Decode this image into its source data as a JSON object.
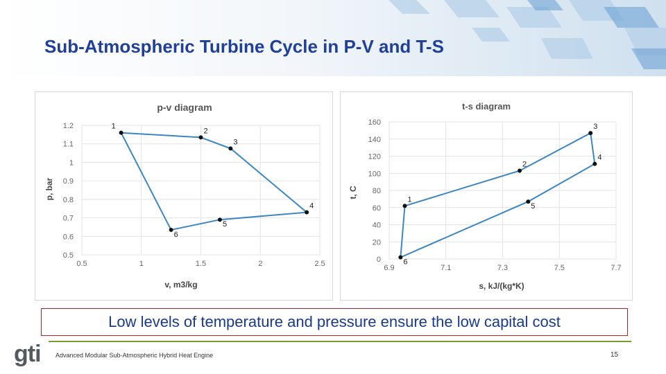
{
  "slide": {
    "title": "Sub-Atmospheric Turbine Cycle in P-V and T-S",
    "callout": "Low levels of temperature and pressure ensure the low capital cost",
    "footer": "Advanced Modular Sub-Atmospheric Hybrid Heat Engine",
    "page_number": "15",
    "logo_text": "gti"
  },
  "colors": {
    "title": "#1f3f99",
    "series_line": "#3b86c4",
    "point": "#111111",
    "callout_border": "#b22222",
    "footer_rule": "#7a9a2a"
  },
  "chart_data": [
    {
      "type": "line",
      "title": "p-v diagram",
      "xlabel": "v, m3/kg",
      "ylabel": "p, bar",
      "xlim": [
        0.5,
        2.5
      ],
      "ylim": [
        0.5,
        1.2
      ],
      "xticks": [
        "0.5",
        "1",
        "1.5",
        "2",
        "2.5"
      ],
      "yticks": [
        "0.5",
        "0.6",
        "0.7",
        "0.8",
        "0.9",
        "1",
        "1.1",
        "1.2"
      ],
      "grid": true,
      "points": [
        {
          "label": "1",
          "x": 0.83,
          "y": 1.16
        },
        {
          "label": "2",
          "x": 1.5,
          "y": 1.135
        },
        {
          "label": "3",
          "x": 1.75,
          "y": 1.075
        },
        {
          "label": "4",
          "x": 2.39,
          "y": 0.73
        },
        {
          "label": "5",
          "x": 1.66,
          "y": 0.69
        },
        {
          "label": "6",
          "x": 1.25,
          "y": 0.635
        }
      ],
      "closed": true
    },
    {
      "type": "line",
      "title": "t-s diagram",
      "xlabel": "s, kJ/(kg*K)",
      "ylabel": "t, C",
      "xlim": [
        6.9,
        7.7
      ],
      "ylim": [
        0,
        160
      ],
      "xticks": [
        "6.9",
        "7.1",
        "7.3",
        "7.5",
        "7.7"
      ],
      "yticks": [
        "0",
        "20",
        "40",
        "60",
        "80",
        "100",
        "120",
        "140",
        "160"
      ],
      "grid": true,
      "points": [
        {
          "label": "1",
          "x": 6.955,
          "y": 62
        },
        {
          "label": "2",
          "x": 7.36,
          "y": 103
        },
        {
          "label": "3",
          "x": 7.61,
          "y": 147
        },
        {
          "label": "4",
          "x": 7.625,
          "y": 111
        },
        {
          "label": "5",
          "x": 7.39,
          "y": 67
        },
        {
          "label": "6",
          "x": 6.94,
          "y": 2
        }
      ],
      "closed": true
    }
  ]
}
